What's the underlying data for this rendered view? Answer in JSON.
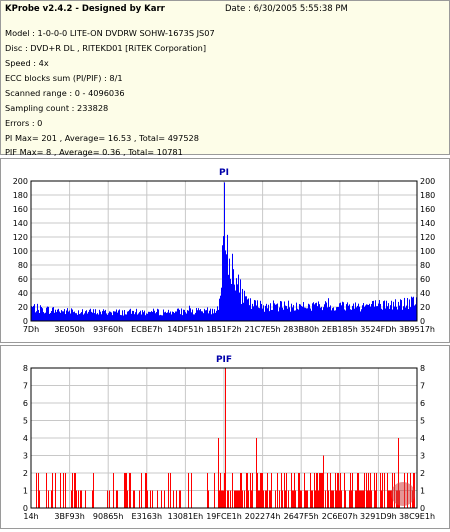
{
  "header": {
    "app_title": "KProbe v2.4.2 - Designed by Karr",
    "date": "Date : 6/30/2005 5:55:38 PM",
    "lines": [
      "Model : 1-0-0-0 LITE-ON DVDRW SOHW-1673S JS07",
      "Disc : DVD+R DL , RITEKD01 [RiTEK Corporation]",
      "Speed : 4x",
      "ECC blocks sum (PI/PIF) : 8/1",
      "Scanned range : 0 - 4096036",
      "Sampling count : 233828",
      "Errors : 0",
      "PI Max= 201 , Average= 16.53 , Total= 497528",
      "PIF Max= 8 , Average= 0.36 , Total= 10781"
    ]
  },
  "colors": {
    "plot_bg": "#ffffff",
    "grid": "#c8c8c8",
    "axis": "#000000",
    "series": "#0000ff",
    "pif_series": "#ff0000",
    "title": "#0000aa",
    "watermark": "#d04040"
  },
  "chart_data": [
    {
      "type": "bar",
      "title": "PI",
      "ylim": [
        0,
        200
      ],
      "yticks": [
        0,
        20,
        40,
        60,
        80,
        100,
        120,
        140,
        160,
        180,
        200
      ],
      "xtick_labels": [
        "7Dh",
        "3E050h",
        "93F60h",
        "ECBE7h",
        "14DF51h",
        "1B51F2h",
        "21C7E5h",
        "283B80h",
        "2EB185h",
        "3524FDh",
        "3B9517h"
      ],
      "grid": true,
      "series_color": "#0000ff",
      "series": [
        {
          "name": "PI",
          "profile": [
            [
              0,
              22
            ],
            [
              0.02,
              19
            ],
            [
              0.1,
              15
            ],
            [
              0.2,
              14
            ],
            [
              0.3,
              14
            ],
            [
              0.4,
              15
            ],
            [
              0.45,
              15
            ],
            [
              0.48,
              18
            ],
            [
              0.492,
              35
            ],
            [
              0.497,
              130
            ],
            [
              0.5,
              198
            ],
            [
              0.503,
              160
            ],
            [
              0.508,
              120
            ],
            [
              0.515,
              95
            ],
            [
              0.525,
              75
            ],
            [
              0.535,
              58
            ],
            [
              0.545,
              42
            ],
            [
              0.555,
              32
            ],
            [
              0.57,
              26
            ],
            [
              0.6,
              24
            ],
            [
              0.7,
              23
            ],
            [
              0.8,
              24
            ],
            [
              0.9,
              25
            ],
            [
              0.96,
              27
            ],
            [
              1.0,
              30
            ]
          ]
        }
      ]
    },
    {
      "type": "bar",
      "title": "PIF",
      "ylim": [
        0,
        8
      ],
      "yticks": [
        0,
        1,
        2,
        3,
        4,
        5,
        6,
        7,
        8
      ],
      "xtick_labels": [
        "14h",
        "3BF93h",
        "90865h",
        "E3163h",
        "13081Eh",
        "19FCE1h",
        "202274h",
        "2647F5h",
        "2C6E07h",
        "3291D9h",
        "38C9E1h"
      ],
      "grid": true,
      "series_color": "#ff0000",
      "series": [
        {
          "name": "PIF",
          "max": 8,
          "max_at": 0.5
        }
      ]
    }
  ]
}
